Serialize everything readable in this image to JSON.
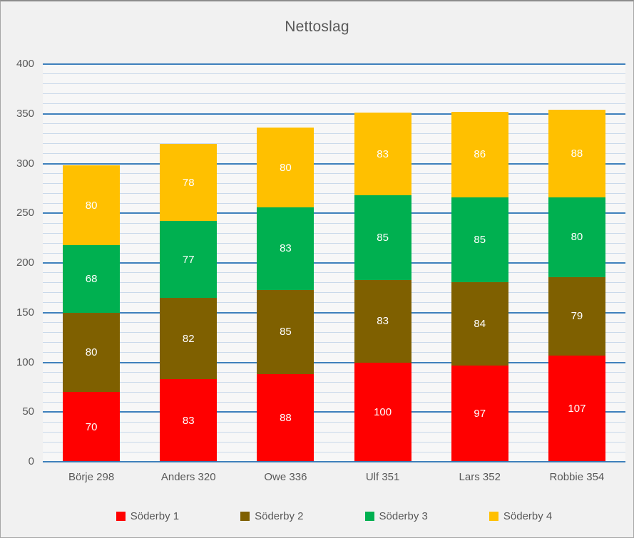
{
  "chart_data": {
    "type": "bar",
    "stacked": true,
    "title": "Nettoslag",
    "categories": [
      "Börje 298",
      "Anders 320",
      "Owe 336",
      "Ulf 351",
      "Lars 352",
      "Robbie 354"
    ],
    "series": [
      {
        "name": "Söderby 1",
        "color": "#FF0000",
        "values": [
          70,
          83,
          88,
          100,
          97,
          107
        ]
      },
      {
        "name": "Söderby 2",
        "color": "#7F6000",
        "values": [
          80,
          82,
          85,
          83,
          84,
          79
        ]
      },
      {
        "name": "Söderby 3",
        "color": "#00B050",
        "values": [
          68,
          77,
          83,
          85,
          85,
          80
        ]
      },
      {
        "name": "Söderby 4",
        "color": "#FFC000",
        "values": [
          80,
          78,
          80,
          83,
          86,
          88
        ]
      }
    ],
    "category_totals": [
      298,
      320,
      336,
      351,
      352,
      354
    ],
    "y_axis": {
      "min": 0,
      "max": 400,
      "major_step": 50,
      "minor_step": 10,
      "tick_labels": [
        "0",
        "50",
        "100",
        "150",
        "200",
        "250",
        "300",
        "350",
        "400"
      ]
    },
    "legend_position": "bottom",
    "grid": "on",
    "colors": {
      "major_gridline": "#2E75B6",
      "minor_gridline": "#CAD9EA",
      "axis_text": "#595959",
      "data_label": "#FFFFFF",
      "background": "#F1F1F1",
      "plot_background": "#F7F7F7"
    }
  }
}
